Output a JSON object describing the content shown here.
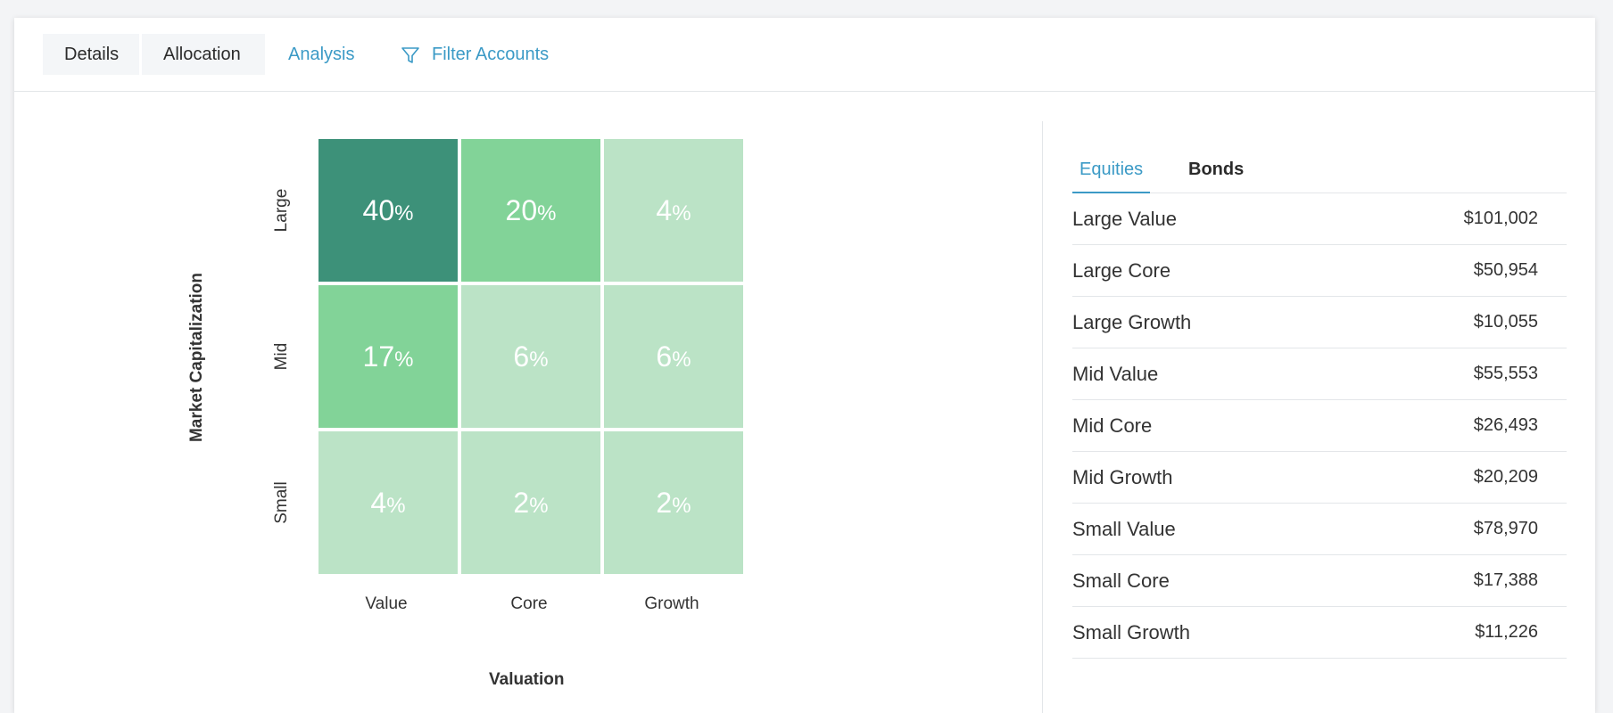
{
  "tabs": {
    "details": "Details",
    "allocation": "Allocation",
    "analysis": "Analysis",
    "filter_accounts": "Filter Accounts"
  },
  "heatmap": {
    "x_title": "Valuation",
    "y_title": "Market Capitalization",
    "rows": [
      "Large",
      "Mid",
      "Small"
    ],
    "cols": [
      "Value",
      "Core",
      "Growth"
    ],
    "unit": "%",
    "values": [
      [
        40,
        20,
        4
      ],
      [
        17,
        6,
        6
      ],
      [
        4,
        2,
        2
      ]
    ],
    "colors": {
      "dark": "#3d9179",
      "medium": "#82d398",
      "light": "#bbe3c6"
    }
  },
  "chart_data": {
    "type": "heatmap",
    "xlabel": "Valuation",
    "ylabel": "Market Capitalization",
    "x_categories": [
      "Value",
      "Core",
      "Growth"
    ],
    "y_categories": [
      "Large",
      "Mid",
      "Small"
    ],
    "values": [
      [
        40,
        20,
        4
      ],
      [
        17,
        6,
        6
      ],
      [
        4,
        2,
        2
      ]
    ],
    "unit": "%"
  },
  "panel": {
    "tabs": {
      "equities": "Equities",
      "bonds": "Bonds"
    },
    "active_tab": "Equities",
    "rows": [
      {
        "label": "Large Value",
        "value": "$101,002"
      },
      {
        "label": "Large Core",
        "value": "$50,954"
      },
      {
        "label": "Large Growth",
        "value": "$10,055"
      },
      {
        "label": "Mid Value",
        "value": "$55,553"
      },
      {
        "label": "Mid Core",
        "value": "$26,493"
      },
      {
        "label": "Mid Growth",
        "value": "$20,209"
      },
      {
        "label": "Small Value",
        "value": "$78,970"
      },
      {
        "label": "Small Core",
        "value": "$17,388"
      },
      {
        "label": "Small Growth",
        "value": "$11,226"
      }
    ]
  },
  "colors": {
    "accent": "#3b9ac6"
  }
}
